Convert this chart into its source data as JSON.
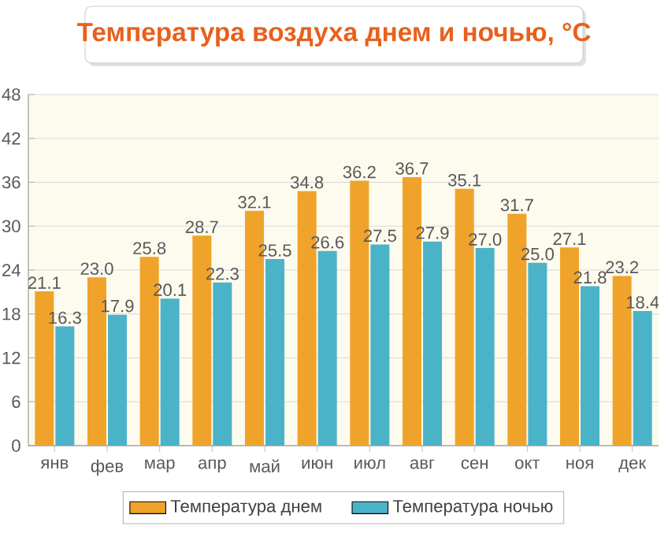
{
  "chart_data": {
    "type": "bar",
    "title": "Температура воздуха днем и ночью, °C",
    "categories": [
      "янв",
      "фев",
      "мар",
      "апр",
      "май",
      "июн",
      "июл",
      "авг",
      "сен",
      "окт",
      "ноя",
      "дек"
    ],
    "series": [
      {
        "name": "Температура днем",
        "color": "#f0a32a",
        "values": [
          21.1,
          23.0,
          25.8,
          28.7,
          32.1,
          34.8,
          36.2,
          36.7,
          35.1,
          31.7,
          27.1,
          23.2
        ],
        "value_labels": [
          "21.1",
          "23.0",
          "25.8",
          "28.7",
          "32.1",
          "34.8",
          "36.2",
          "36.7",
          "35.1",
          "31.7",
          "27.1",
          "23.2"
        ]
      },
      {
        "name": "Температура ночью",
        "color": "#4bb3c8",
        "values": [
          16.3,
          17.9,
          20.1,
          22.3,
          25.5,
          26.6,
          27.5,
          27.9,
          27.0,
          25.0,
          21.8,
          18.4
        ],
        "value_labels": [
          "16.3",
          "17.9",
          "20.1",
          "22.3",
          "25.5",
          "26.6",
          "27.5",
          "27.9",
          "27.0",
          "25.0",
          "21.8",
          "18.4"
        ]
      }
    ],
    "ylim": [
      0,
      48
    ],
    "yticks": [
      0,
      6,
      12,
      18,
      24,
      30,
      36,
      42,
      48
    ],
    "grid": "y",
    "legend": "bottom"
  }
}
